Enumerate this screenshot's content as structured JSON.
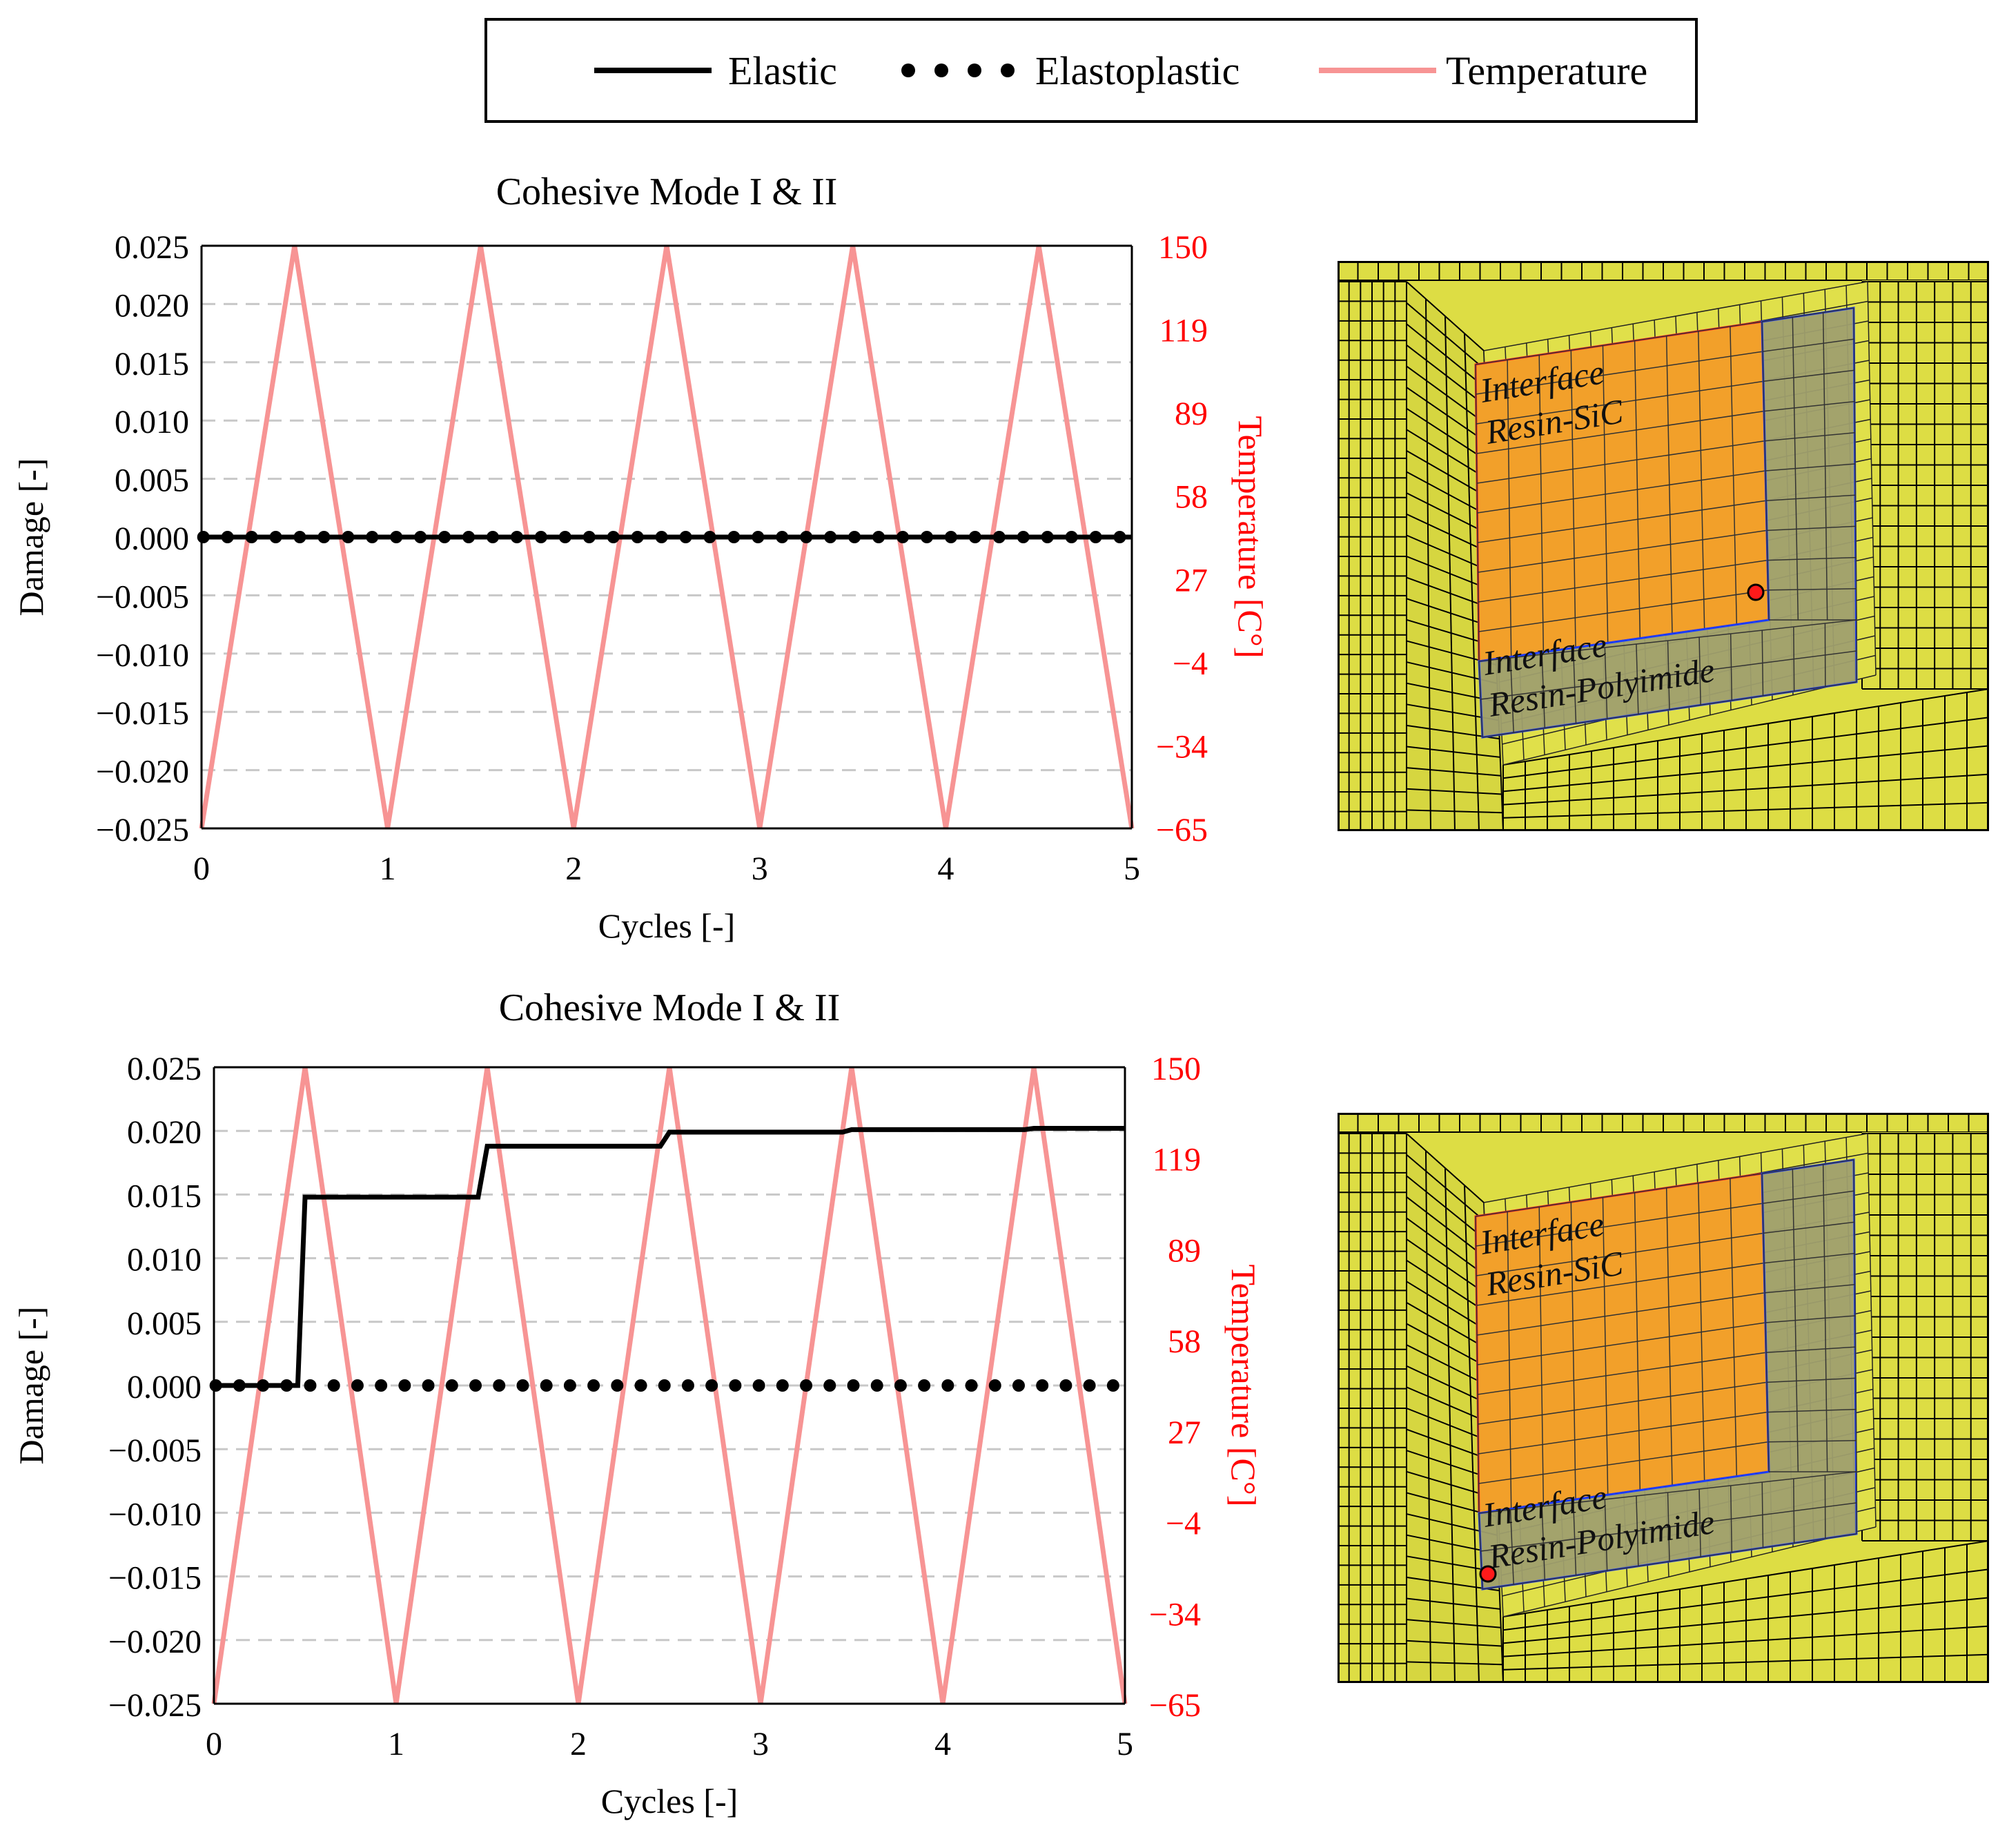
{
  "legend": {
    "items": [
      {
        "label": "Elastic",
        "style": "solid",
        "color": "#000000"
      },
      {
        "label": "Elastoplastic",
        "style": "dotted",
        "color": "#000000"
      },
      {
        "label": "Temperature",
        "style": "solid",
        "color": "#f79494"
      }
    ]
  },
  "chart_data": [
    {
      "type": "line",
      "title": "Cohesive Mode I & II",
      "xlabel": "Cycles [-]",
      "ylabel": "Damage [-]",
      "y2label": "Temperature [C°]",
      "xlim": [
        0,
        5
      ],
      "ylim": [
        -0.025,
        0.025
      ],
      "y2lim": [
        -65,
        150
      ],
      "xticks": [
        "0",
        "1",
        "2",
        "3",
        "4",
        "5"
      ],
      "yticks": [
        "0.025",
        "0.020",
        "0.015",
        "0.010",
        "0.005",
        "0.000",
        "−0.005",
        "−0.010",
        "−0.015",
        "−0.020",
        "−0.025"
      ],
      "y2ticks": [
        "150",
        "119",
        "89",
        "58",
        "27",
        "−4",
        "−34",
        "−65"
      ],
      "grid": "horizontal dashed",
      "series": [
        {
          "name": "Elastic",
          "axis": "left",
          "style": "solid",
          "color": "#000000",
          "x": [
            0,
            5
          ],
          "y": [
            0.0,
            0.0
          ]
        },
        {
          "name": "Elastoplastic",
          "axis": "left",
          "style": "dotted",
          "color": "#000000",
          "x": [
            0,
            5
          ],
          "y": [
            0.0,
            0.0
          ]
        },
        {
          "name": "Temperature",
          "axis": "right",
          "style": "solid",
          "color": "#f79494",
          "x": [
            0,
            0.5,
            1,
            1.5,
            2,
            2.5,
            3,
            3.5,
            4,
            4.5,
            5
          ],
          "y": [
            -65,
            150,
            -65,
            150,
            -65,
            150,
            -65,
            150,
            -65,
            150,
            -65
          ]
        }
      ]
    },
    {
      "type": "line",
      "title": "Cohesive Mode I & II",
      "xlabel": "Cycles [-]",
      "ylabel": "Damage [-]",
      "y2label": "Temperature [C°]",
      "xlim": [
        0,
        5
      ],
      "ylim": [
        -0.025,
        0.025
      ],
      "y2lim": [
        -65,
        150
      ],
      "xticks": [
        "0",
        "1",
        "2",
        "3",
        "4",
        "5"
      ],
      "yticks": [
        "0.025",
        "0.020",
        "0.015",
        "0.010",
        "0.005",
        "0.000",
        "−0.005",
        "−0.010",
        "−0.015",
        "−0.020",
        "−0.025"
      ],
      "y2ticks": [
        "150",
        "119",
        "89",
        "58",
        "27",
        "−4",
        "−34",
        "−65"
      ],
      "grid": "horizontal dashed",
      "series": [
        {
          "name": "Elastic",
          "axis": "left",
          "style": "solid",
          "color": "#000000",
          "x": [
            0,
            0.46,
            0.5,
            1.45,
            1.5,
            2.45,
            2.5,
            3.45,
            3.5,
            4.45,
            4.5,
            5
          ],
          "y": [
            0.0,
            0.0,
            0.0148,
            0.0148,
            0.0188,
            0.0188,
            0.0199,
            0.0199,
            0.0201,
            0.0201,
            0.0202,
            0.0202
          ]
        },
        {
          "name": "Elastoplastic",
          "axis": "left",
          "style": "dotted",
          "color": "#000000",
          "x": [
            0,
            5
          ],
          "y": [
            0.0,
            0.0
          ]
        },
        {
          "name": "Temperature",
          "axis": "right",
          "style": "solid",
          "color": "#f79494",
          "x": [
            0,
            0.5,
            1,
            1.5,
            2,
            2.5,
            3,
            3.5,
            4,
            4.5,
            5
          ],
          "y": [
            -65,
            150,
            -65,
            150,
            -65,
            150,
            -65,
            150,
            -65,
            150,
            -65
          ]
        }
      ]
    }
  ],
  "mesh_views": [
    {
      "labels": [
        "Interface",
        "Resin-SiC",
        "Interface",
        "Resin-Polyimide"
      ],
      "marker": "inner-corner"
    },
    {
      "labels": [
        "Interface",
        "Resin-SiC",
        "Interface",
        "Resin-Polyimide"
      ],
      "marker": "outer-corner"
    }
  ]
}
